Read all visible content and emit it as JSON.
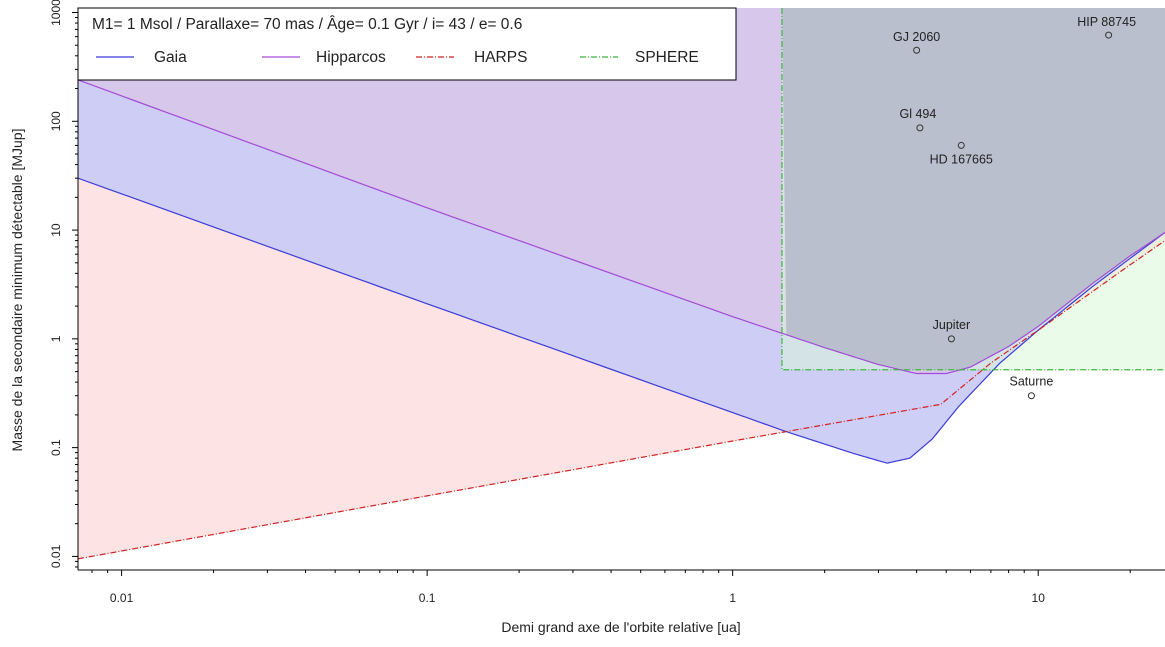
{
  "chart_data": {
    "type": "area",
    "title": "M1= 1 Msol  /  Parallaxe= 70  mas   /   Âge=  0.1  Gyr  /  i= 43  / e= 0.6",
    "xlabel": "Demi grand axe de l'orbite relative [ua]",
    "ylabel": "Masse de la secondaire minimum détectable [MJup]",
    "xscale": "log",
    "yscale": "log",
    "xlim": [
      0.0072,
      26
    ],
    "ylim": [
      0.0075,
      1100
    ],
    "x_ticks": [
      0.01,
      0.1,
      1,
      10
    ],
    "x_tick_labels": [
      "0.01",
      "0.1",
      "1",
      "10"
    ],
    "y_ticks": [
      0.01,
      0.1,
      1,
      10,
      100,
      1000
    ],
    "y_tick_labels": [
      "0.01",
      "0.1",
      "1",
      "10",
      "100",
      "1000"
    ],
    "grid": false,
    "legend_placement": "top-left",
    "series": [
      {
        "name": "Gaia",
        "color": "#3b3bd8",
        "fill": "#c9caf6",
        "line_style": "solid",
        "x": [
          0.0072,
          0.1,
          1,
          1.5,
          2.5,
          3.2,
          3.8,
          4.5,
          5.5,
          7.5,
          10,
          15,
          20,
          26
        ],
        "y": [
          30,
          2.1,
          0.21,
          0.14,
          0.088,
          0.072,
          0.08,
          0.12,
          0.24,
          0.6,
          1.2,
          3.0,
          5.5,
          9.5
        ]
      },
      {
        "name": "Hipparcos",
        "color": "#a34ad8",
        "fill": "#d8c5e7",
        "line_style": "solid",
        "x": [
          0.0072,
          0.1,
          1,
          2,
          3,
          4,
          5,
          6,
          8,
          10,
          15,
          20,
          26
        ],
        "y": [
          240,
          16,
          1.6,
          0.83,
          0.58,
          0.48,
          0.48,
          0.55,
          0.85,
          1.3,
          3.2,
          5.8,
          9.5
        ]
      },
      {
        "name": "HARPS",
        "color": "#d22020",
        "fill": "#fde0e0",
        "line_style": "dashdot",
        "x": [
          0.0072,
          0.1,
          1,
          4.8,
          7,
          10,
          15,
          20,
          26
        ],
        "y": [
          0.0095,
          0.036,
          0.115,
          0.25,
          0.6,
          1.2,
          2.7,
          4.8,
          8.0
        ]
      },
      {
        "name": "SPHERE",
        "color": "#3cb83c",
        "fill": "#d9f7d9",
        "line_style": "dashdot",
        "x": [
          1.45,
          1.45,
          26
        ],
        "y": [
          1100,
          0.52,
          0.52
        ]
      }
    ],
    "objects": [
      {
        "label": "GJ 2060",
        "x": 4.0,
        "y": 450
      },
      {
        "label": "HIP 88745",
        "x": 17.0,
        "y": 620
      },
      {
        "label": "Gl 494",
        "x": 4.1,
        "y": 87
      },
      {
        "label": "HD 167665",
        "x": 5.6,
        "y": 60
      },
      {
        "label": "Jupiter",
        "x": 5.2,
        "y": 1.0
      },
      {
        "label": "Saturne",
        "x": 9.5,
        "y": 0.3
      }
    ],
    "overlap_color": "#b5b8c9"
  }
}
